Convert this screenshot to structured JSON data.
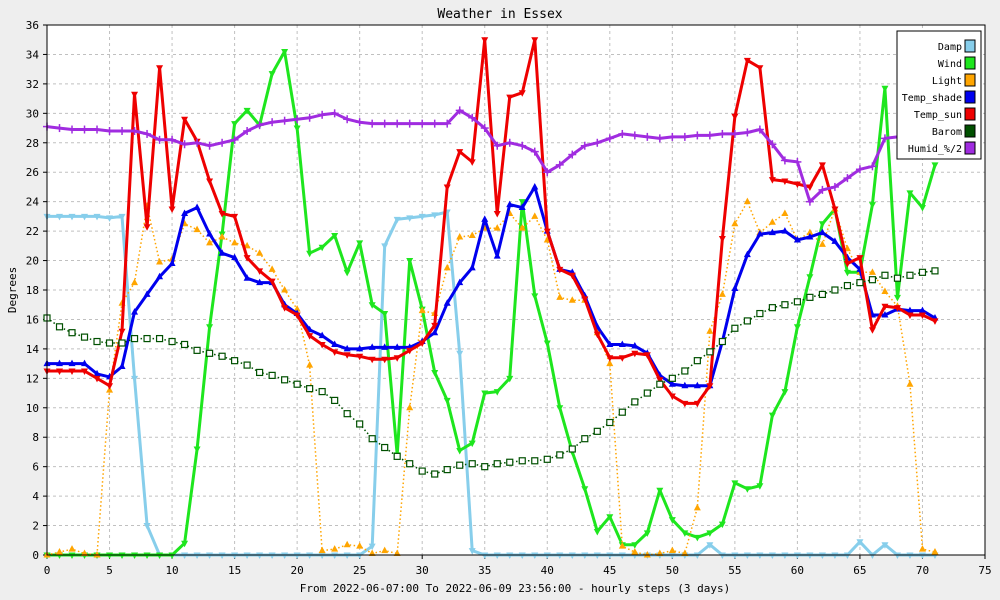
{
  "chart_data": {
    "type": "line",
    "title": "Weather in Essex",
    "xlabel": "From 2022-06-07:00 To 2022-06-09 23:56:00 - hourly steps (3 days)",
    "ylabel": "Degrees",
    "xlim": [
      0,
      75
    ],
    "ylim": [
      0,
      36
    ],
    "xticks": [
      0,
      5,
      10,
      15,
      20,
      25,
      30,
      35,
      40,
      45,
      50,
      55,
      60,
      65,
      70,
      75
    ],
    "yticks": [
      0,
      2,
      4,
      6,
      8,
      10,
      12,
      14,
      16,
      18,
      20,
      22,
      24,
      26,
      28,
      30,
      32,
      34,
      36
    ],
    "grid": true,
    "legend_position": "top-right",
    "series": [
      {
        "name": "Damp",
        "color": "#87ceeb",
        "marker": "triangle-down",
        "line": "solid",
        "width": 3,
        "x": [
          0,
          1,
          2,
          3,
          4,
          5,
          6,
          7,
          8,
          9,
          10,
          11,
          12,
          13,
          14,
          15,
          16,
          17,
          18,
          19,
          20,
          21,
          22,
          23,
          24,
          25,
          26,
          27,
          28,
          29,
          30,
          31,
          32,
          33,
          34,
          35,
          36,
          37,
          38,
          39,
          40,
          41,
          42,
          43,
          44,
          45,
          46,
          47,
          48,
          49,
          50,
          51,
          52,
          53,
          54,
          55,
          56,
          57,
          58,
          59,
          60,
          61,
          62,
          63,
          64,
          65,
          66,
          67,
          68,
          69,
          70,
          71
        ],
        "y": [
          23,
          23,
          23,
          23,
          23,
          22.9,
          23,
          12,
          2,
          0,
          0,
          0,
          0,
          0,
          0,
          0,
          0,
          0,
          0,
          0,
          0,
          0,
          0,
          0,
          0,
          0,
          0.6,
          21,
          22.8,
          22.9,
          23,
          23.1,
          23.3,
          13.7,
          0.3,
          0,
          0,
          0,
          0,
          0,
          0,
          0,
          0,
          0,
          0,
          0,
          0,
          0,
          0,
          0,
          0,
          0,
          0,
          0.7,
          0,
          0,
          0,
          0,
          0,
          0,
          0,
          0,
          0,
          0,
          0,
          0.9,
          0,
          0.7,
          0,
          0,
          0,
          0
        ]
      },
      {
        "name": "Wind",
        "color": "#1ee61e",
        "marker": "triangle-down",
        "line": "solid",
        "width": 3,
        "x": [
          0,
          1,
          2,
          3,
          4,
          5,
          6,
          7,
          8,
          9,
          10,
          11,
          12,
          13,
          14,
          15,
          16,
          17,
          18,
          19,
          20,
          21,
          22,
          23,
          24,
          25,
          26,
          27,
          28,
          29,
          30,
          31,
          32,
          33,
          34,
          35,
          36,
          37,
          38,
          39,
          40,
          41,
          42,
          43,
          44,
          45,
          46,
          47,
          48,
          49,
          50,
          51,
          52,
          53,
          54,
          55,
          56,
          57,
          58,
          59,
          60,
          61,
          62,
          63,
          64,
          65,
          66,
          67,
          68,
          69,
          70,
          71
        ],
        "y": [
          0,
          0,
          0,
          0,
          0,
          0,
          0,
          0,
          0,
          0,
          0,
          0.8,
          7.2,
          15.5,
          21.8,
          29.3,
          30.2,
          29.2,
          32.7,
          34.2,
          29,
          20.5,
          20.9,
          21.7,
          19.2,
          21.2,
          17,
          16.4,
          6.8,
          20,
          16.7,
          12.4,
          10.5,
          7.1,
          7.6,
          11,
          11.1,
          12,
          24,
          17.6,
          14.4,
          10,
          7,
          4.5,
          1.6,
          2.6,
          0.7,
          0.7,
          1.5,
          4.4,
          2.4,
          1.5,
          1.2,
          1.5,
          2.1,
          4.9,
          4.5,
          4.7,
          9.5,
          11.1,
          15.5,
          18.9,
          22.5,
          23.5,
          19.2,
          19.2,
          23.8,
          31.7,
          17.5,
          24.6,
          23.6,
          26.5
        ]
      },
      {
        "name": "Light",
        "color": "#ffa500",
        "marker": "triangle-up",
        "line": "dotted",
        "width": 1.5,
        "x": [
          0,
          1,
          2,
          3,
          4,
          5,
          6,
          7,
          8,
          9,
          10,
          11,
          12,
          13,
          14,
          15,
          16,
          17,
          18,
          19,
          20,
          21,
          22,
          23,
          24,
          25,
          26,
          27,
          28,
          29,
          30,
          31,
          32,
          33,
          34,
          35,
          36,
          37,
          38,
          39,
          40,
          41,
          42,
          43,
          44,
          45,
          46,
          47,
          48,
          49,
          50,
          51,
          52,
          53,
          54,
          55,
          56,
          57,
          58,
          59,
          60,
          61,
          62,
          63,
          64,
          65,
          66,
          67,
          68,
          69,
          70,
          71
        ],
        "y": [
          0,
          0.2,
          0.4,
          0.1,
          0,
          11.2,
          17.1,
          18.5,
          23.7,
          19.9,
          20.1,
          22.5,
          22.1,
          21.2,
          21.6,
          21.2,
          21,
          20.5,
          19.4,
          18,
          16.7,
          12.9,
          0.3,
          0.4,
          0.7,
          0.6,
          0.1,
          0.3,
          0.1,
          10,
          16.6,
          16.4,
          19.5,
          21.6,
          21.7,
          22.2,
          22.2,
          23.2,
          22.2,
          23,
          21.4,
          17.5,
          17.3,
          17.3,
          15.1,
          13,
          0.6,
          0.2,
          0,
          0.1,
          0.3,
          0.1,
          3.2,
          15.2,
          17.7,
          22.5,
          24,
          21.9,
          22.6,
          23.2,
          21.4,
          21.9,
          21.1,
          23.5,
          20.8,
          19.2,
          19.2,
          17.9,
          16.9,
          11.6,
          0.4,
          0.2
        ]
      },
      {
        "name": "Temp_shade",
        "color": "#0000ee",
        "marker": "triangle-up",
        "line": "solid",
        "width": 3,
        "x": [
          0,
          1,
          2,
          3,
          4,
          5,
          6,
          7,
          8,
          9,
          10,
          11,
          12,
          13,
          14,
          15,
          16,
          17,
          18,
          19,
          20,
          21,
          22,
          23,
          24,
          25,
          26,
          27,
          28,
          29,
          30,
          31,
          32,
          33,
          34,
          35,
          36,
          37,
          38,
          39,
          40,
          41,
          42,
          43,
          44,
          45,
          46,
          47,
          48,
          49,
          50,
          51,
          52,
          53,
          54,
          55,
          56,
          57,
          58,
          59,
          60,
          61,
          62,
          63,
          64,
          65,
          66,
          67,
          68,
          69,
          70,
          71
        ],
        "y": [
          13,
          13,
          13,
          13,
          12.3,
          12.1,
          12.8,
          16.5,
          17.7,
          18.9,
          19.8,
          23.2,
          23.6,
          21.8,
          20.5,
          20.2,
          18.8,
          18.5,
          18.5,
          17,
          16.4,
          15.3,
          14.9,
          14.3,
          14,
          14,
          14.1,
          14.1,
          14.1,
          14.1,
          14.5,
          15.1,
          17.1,
          18.5,
          19.5,
          22.8,
          20.3,
          23.8,
          23.6,
          25,
          22,
          19.4,
          19.2,
          17.6,
          15.5,
          14.3,
          14.3,
          14.2,
          13.7,
          12.2,
          11.6,
          11.5,
          11.5,
          11.5,
          14.5,
          18.1,
          20.4,
          21.8,
          21.9,
          22,
          21.4,
          21.6,
          21.9,
          21.3,
          20.2,
          19.4,
          16.3,
          16.3,
          16.7,
          16.6,
          16.6,
          16.1
        ]
      },
      {
        "name": "Temp_sun",
        "color": "#ee0000",
        "marker": "triangle-down",
        "line": "solid",
        "width": 3,
        "x": [
          0,
          1,
          2,
          3,
          4,
          5,
          6,
          7,
          8,
          9,
          10,
          11,
          12,
          13,
          14,
          15,
          16,
          17,
          18,
          19,
          20,
          21,
          22,
          23,
          24,
          25,
          26,
          27,
          28,
          29,
          30,
          31,
          32,
          33,
          34,
          35,
          36,
          37,
          38,
          39,
          40,
          41,
          42,
          43,
          44,
          45,
          46,
          47,
          48,
          49,
          50,
          51,
          52,
          53,
          54,
          55,
          56,
          57,
          58,
          59,
          60,
          61,
          62,
          63,
          64,
          65,
          66,
          67,
          68,
          69,
          70,
          71
        ],
        "y": [
          12.5,
          12.5,
          12.5,
          12.5,
          12,
          11.5,
          15.2,
          31.3,
          22.3,
          33.1,
          23.5,
          29.6,
          28.1,
          25.4,
          23.2,
          23,
          20.2,
          19.3,
          18.6,
          16.8,
          16.3,
          14.9,
          14.3,
          13.8,
          13.6,
          13.5,
          13.3,
          13.3,
          13.4,
          13.9,
          14.4,
          15.6,
          25,
          27.4,
          26.7,
          35,
          23.2,
          31.1,
          31.4,
          35,
          22,
          19.4,
          19,
          17.4,
          15,
          13.4,
          13.4,
          13.7,
          13.6,
          11.9,
          10.8,
          10.3,
          10.3,
          11.5,
          21.5,
          29.8,
          33.6,
          33.1,
          25.5,
          25.4,
          25.2,
          25,
          26.5,
          23.5,
          19.8,
          20.2,
          15.3,
          16.9,
          16.8,
          16.3,
          16.3,
          15.9
        ]
      },
      {
        "name": "Barom",
        "color": "#005000",
        "marker": "square",
        "line": "dotted",
        "width": 1.5,
        "x": [
          0,
          1,
          2,
          3,
          4,
          5,
          6,
          7,
          8,
          9,
          10,
          11,
          12,
          13,
          14,
          15,
          16,
          17,
          18,
          19,
          20,
          21,
          22,
          23,
          24,
          25,
          26,
          27,
          28,
          29,
          30,
          31,
          32,
          33,
          34,
          35,
          36,
          37,
          38,
          39,
          40,
          41,
          42,
          43,
          44,
          45,
          46,
          47,
          48,
          49,
          50,
          51,
          52,
          53,
          54,
          55,
          56,
          57,
          58,
          59,
          60,
          61,
          62,
          63,
          64,
          65,
          66,
          67,
          68,
          69,
          70,
          71
        ],
        "y": [
          16.1,
          15.5,
          15.1,
          14.8,
          14.5,
          14.4,
          14.4,
          14.7,
          14.7,
          14.7,
          14.5,
          14.3,
          13.9,
          13.7,
          13.5,
          13.2,
          12.9,
          12.4,
          12.2,
          11.9,
          11.6,
          11.3,
          11.1,
          10.5,
          9.6,
          8.9,
          7.9,
          7.3,
          6.7,
          6.2,
          5.7,
          5.5,
          5.8,
          6.1,
          6.2,
          6,
          6.2,
          6.3,
          6.4,
          6.4,
          6.5,
          6.8,
          7.2,
          7.9,
          8.4,
          9,
          9.7,
          10.4,
          11,
          11.6,
          12,
          12.5,
          13.2,
          13.8,
          14.5,
          15.4,
          15.9,
          16.4,
          16.8,
          17,
          17.2,
          17.5,
          17.7,
          18,
          18.3,
          18.5,
          18.7,
          19,
          18.8,
          19,
          19.2,
          19.3
        ]
      },
      {
        "name": "Humid_%/2",
        "color": "#a02ce0",
        "marker": "plus",
        "line": "solid",
        "width": 3,
        "x": [
          0,
          1,
          2,
          3,
          4,
          5,
          6,
          7,
          8,
          9,
          10,
          11,
          12,
          13,
          14,
          15,
          16,
          17,
          18,
          19,
          20,
          21,
          22,
          23,
          24,
          25,
          26,
          27,
          28,
          29,
          30,
          31,
          32,
          33,
          34,
          35,
          36,
          37,
          38,
          39,
          40,
          41,
          42,
          43,
          44,
          45,
          46,
          47,
          48,
          49,
          50,
          51,
          52,
          53,
          54,
          55,
          56,
          57,
          58,
          59,
          60,
          61,
          62,
          63,
          64,
          65,
          66,
          67,
          68,
          69,
          70,
          71
        ],
        "y": [
          29.1,
          29,
          28.9,
          28.9,
          28.9,
          28.8,
          28.8,
          28.8,
          28.6,
          28.2,
          28.2,
          27.9,
          28,
          27.8,
          28,
          28.2,
          28.8,
          29.2,
          29.4,
          29.5,
          29.6,
          29.7,
          29.9,
          30,
          29.6,
          29.4,
          29.3,
          29.3,
          29.3,
          29.3,
          29.3,
          29.3,
          29.3,
          30.2,
          29.7,
          29,
          27.8,
          28,
          27.8,
          27.4,
          26,
          26.5,
          27.2,
          27.8,
          28,
          28.3,
          28.6,
          28.5,
          28.4,
          28.3,
          28.4,
          28.4,
          28.5,
          28.5,
          28.6,
          28.6,
          28.7,
          28.9,
          27.9,
          26.8,
          26.7,
          24,
          24.8,
          25,
          25.6,
          26.2,
          26.4,
          28.3,
          28.4,
          28.4,
          28.4,
          28.4
        ]
      }
    ]
  }
}
